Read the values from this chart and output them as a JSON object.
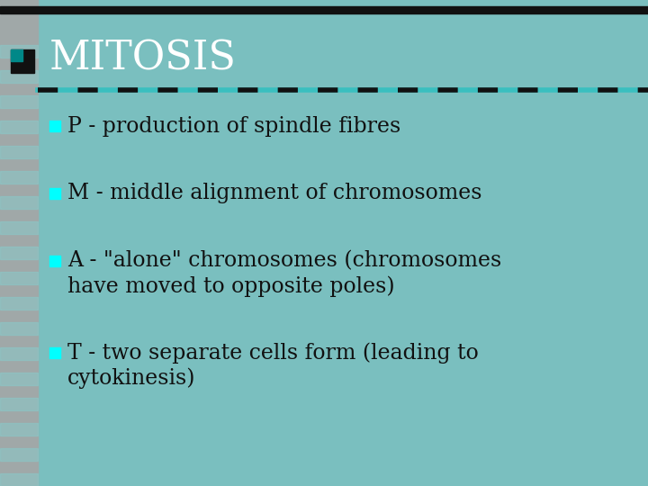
{
  "bg_color": "#7abfbf",
  "title": "MITOSIS",
  "title_color": "#ffffff",
  "title_fontsize": 32,
  "title_font": "serif",
  "bullet_color": "#00ffff",
  "text_color": "#111111",
  "bullet_fontsize": 17,
  "bullet_font": "serif",
  "top_bar_color": "#111111",
  "dashed_line_color_black": "#111111",
  "dashed_line_color_teal": "#3abfbf",
  "left_strip_color": "#a0a8a8",
  "title_square_dark": "#111111",
  "title_square_teal": "#008888",
  "bullets": [
    [
      "P - production of spindle fibres",
      null
    ],
    [
      "M - middle alignment of chromosomes",
      null
    ],
    [
      "A - \"alone\" chromosomes (chromosomes",
      "have moved to opposite poles)"
    ],
    [
      "T - two separate cells form (leading to",
      "cytokinesis)"
    ]
  ],
  "fig_width": 7.2,
  "fig_height": 5.4,
  "dpi": 100
}
